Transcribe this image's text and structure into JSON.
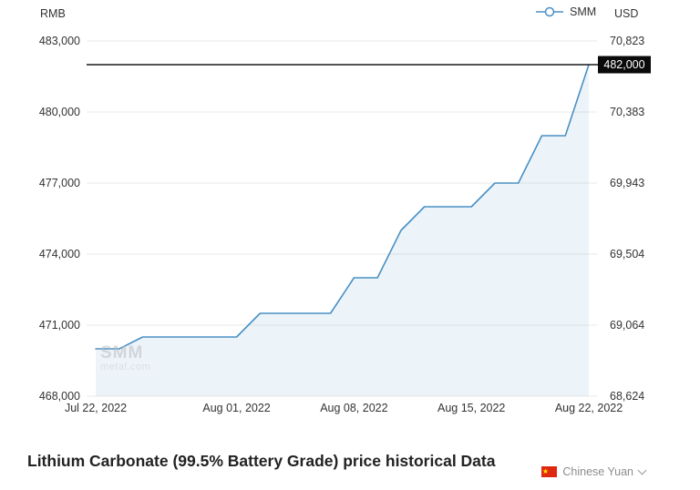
{
  "chart": {
    "left_axis_label": "RMB",
    "right_axis_label": "USD",
    "legend": {
      "label": "SMM",
      "color": "#4a90c4"
    },
    "max_label": "482,000",
    "watermark": {
      "line1": "SMM",
      "line2": "metal.com"
    }
  },
  "chart_data": {
    "type": "line",
    "title": "",
    "ylabel_left": "RMB",
    "ylabel_right": "USD",
    "grid": true,
    "legend_position": "top-right",
    "ylim": [
      468000,
      483000
    ],
    "y_tick_values": [
      483000,
      480000,
      477000,
      474000,
      471000,
      468000
    ],
    "y_ticks_left": [
      "483,000",
      "480,000",
      "477,000",
      "474,000",
      "471,000",
      "468,000"
    ],
    "y_ticks_right": [
      "70,823",
      "70,383",
      "69,943",
      "69,504",
      "69,064",
      "68,624"
    ],
    "x": [
      "Jul 22, 2022",
      "Jul 25, 2022",
      "Jul 26, 2022",
      "Jul 27, 2022",
      "Jul 28, 2022",
      "Jul 29, 2022",
      "Aug 01, 2022",
      "Aug 02, 2022",
      "Aug 03, 2022",
      "Aug 04, 2022",
      "Aug 05, 2022",
      "Aug 08, 2022",
      "Aug 09, 2022",
      "Aug 10, 2022",
      "Aug 11, 2022",
      "Aug 12, 2022",
      "Aug 15, 2022",
      "Aug 16, 2022",
      "Aug 17, 2022",
      "Aug 18, 2022",
      "Aug 19, 2022",
      "Aug 22, 2022"
    ],
    "x_tick_labels": [
      "Jul 22, 2022",
      "Aug 01, 2022",
      "Aug 08, 2022",
      "Aug 15, 2022",
      "Aug 22, 2022"
    ],
    "x_tick_indices": [
      0,
      6,
      11,
      16,
      21
    ],
    "series": [
      {
        "name": "SMM",
        "color": "#4a90c4",
        "values": [
          470000,
          470000,
          470500,
          470500,
          470500,
          470500,
          470500,
          471500,
          471500,
          471500,
          471500,
          473000,
          473000,
          475000,
          476000,
          476000,
          476000,
          477000,
          477000,
          479000,
          479000,
          482000
        ]
      }
    ],
    "max_line": 482000,
    "max_line_label": "482,000"
  },
  "footer": {
    "title": "Lithium Carbonate (99.5% Battery Grade) price historical Data",
    "currency_label": "Chinese Yuan",
    "flag_icon": "china-flag",
    "chevron_icon": "chevron-down"
  }
}
